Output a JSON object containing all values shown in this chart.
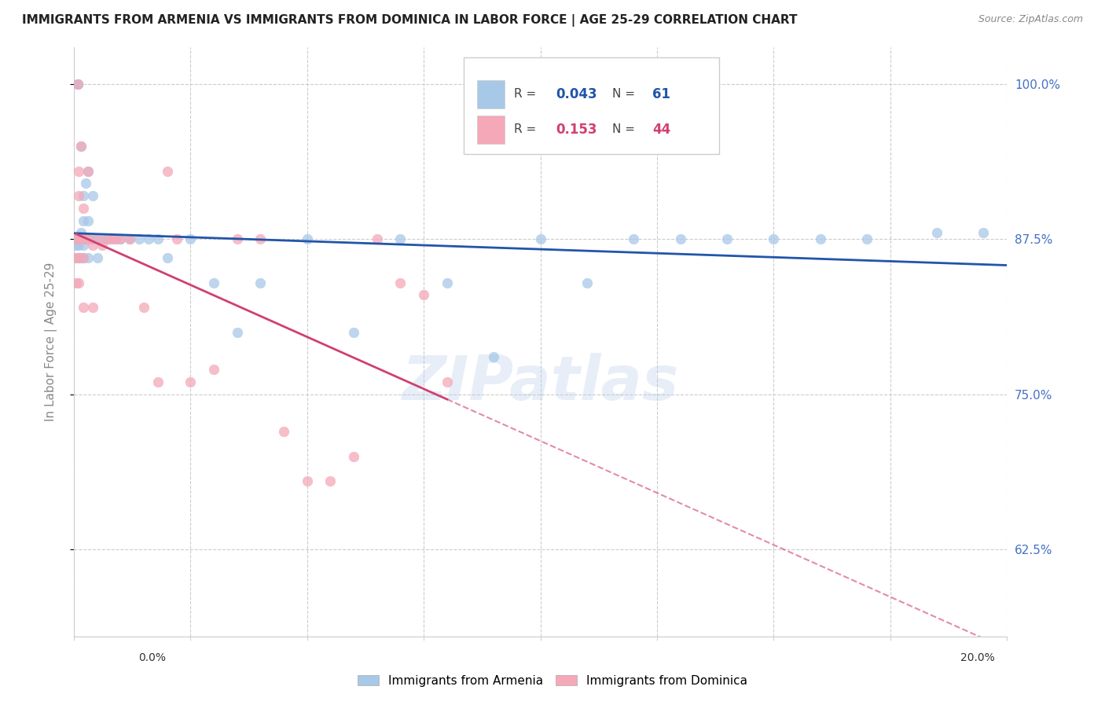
{
  "title": "IMMIGRANTS FROM ARMENIA VS IMMIGRANTS FROM DOMINICA IN LABOR FORCE | AGE 25-29 CORRELATION CHART",
  "source": "Source: ZipAtlas.com",
  "ylabel": "In Labor Force | Age 25-29",
  "ytick_values": [
    0.625,
    0.75,
    0.875,
    1.0
  ],
  "xlim": [
    0.0,
    0.2
  ],
  "ylim": [
    0.555,
    1.03
  ],
  "color_armenia": "#a8c8e8",
  "color_dominica": "#f4a8b8",
  "line_color_armenia": "#2255aa",
  "line_color_dominica": "#d04070",
  "watermark": "ZIPatlas",
  "legend_corr": [
    {
      "R": "0.043",
      "N": "61",
      "color": "#2255aa",
      "patch_color": "#a8c8e8"
    },
    {
      "R": "0.153",
      "N": "44",
      "color": "#d04070",
      "patch_color": "#f4a8b8"
    }
  ],
  "legend_entries": [
    {
      "label": "Immigrants from Armenia",
      "color": "#a8c8e8"
    },
    {
      "label": "Immigrants from Dominica",
      "color": "#f4a8b8"
    }
  ],
  "armenia_x": [
    0.0005,
    0.0005,
    0.0005,
    0.0008,
    0.0008,
    0.001,
    0.001,
    0.001,
    0.001,
    0.001,
    0.0012,
    0.0012,
    0.0015,
    0.0015,
    0.0015,
    0.002,
    0.002,
    0.002,
    0.002,
    0.002,
    0.002,
    0.0025,
    0.0025,
    0.003,
    0.003,
    0.003,
    0.003,
    0.0035,
    0.004,
    0.004,
    0.005,
    0.005,
    0.006,
    0.007,
    0.008,
    0.009,
    0.01,
    0.012,
    0.014,
    0.016,
    0.018,
    0.02,
    0.025,
    0.03,
    0.035,
    0.04,
    0.05,
    0.06,
    0.07,
    0.08,
    0.09,
    0.1,
    0.11,
    0.12,
    0.13,
    0.14,
    0.15,
    0.16,
    0.17,
    0.185,
    0.195
  ],
  "armenia_y": [
    0.875,
    0.87,
    0.86,
    1.0,
    1.0,
    0.875,
    0.875,
    0.875,
    0.87,
    0.86,
    0.875,
    0.86,
    0.95,
    0.88,
    0.86,
    0.91,
    0.89,
    0.875,
    0.875,
    0.87,
    0.86,
    0.92,
    0.875,
    0.93,
    0.89,
    0.875,
    0.86,
    0.875,
    0.91,
    0.875,
    0.875,
    0.86,
    0.875,
    0.875,
    0.875,
    0.875,
    0.875,
    0.875,
    0.875,
    0.875,
    0.875,
    0.86,
    0.875,
    0.84,
    0.8,
    0.84,
    0.875,
    0.8,
    0.875,
    0.84,
    0.78,
    0.875,
    0.84,
    0.875,
    0.875,
    0.875,
    0.875,
    0.875,
    0.875,
    0.88,
    0.88
  ],
  "dominica_x": [
    0.0005,
    0.0005,
    0.0005,
    0.0008,
    0.001,
    0.001,
    0.001,
    0.001,
    0.001,
    0.0012,
    0.0015,
    0.0015,
    0.002,
    0.002,
    0.002,
    0.002,
    0.0025,
    0.003,
    0.003,
    0.004,
    0.004,
    0.005,
    0.006,
    0.007,
    0.008,
    0.009,
    0.01,
    0.012,
    0.015,
    0.018,
    0.02,
    0.022,
    0.025,
    0.03,
    0.035,
    0.04,
    0.045,
    0.05,
    0.055,
    0.06,
    0.065,
    0.07,
    0.075,
    0.08
  ],
  "dominica_y": [
    0.875,
    0.86,
    0.84,
    1.0,
    0.93,
    0.91,
    0.875,
    0.86,
    0.84,
    0.875,
    0.95,
    0.875,
    0.9,
    0.875,
    0.86,
    0.82,
    0.875,
    0.93,
    0.875,
    0.87,
    0.82,
    0.875,
    0.87,
    0.875,
    0.875,
    0.875,
    0.875,
    0.875,
    0.82,
    0.76,
    0.93,
    0.875,
    0.76,
    0.77,
    0.875,
    0.875,
    0.72,
    0.68,
    0.68,
    0.7,
    0.875,
    0.84,
    0.83,
    0.76
  ]
}
